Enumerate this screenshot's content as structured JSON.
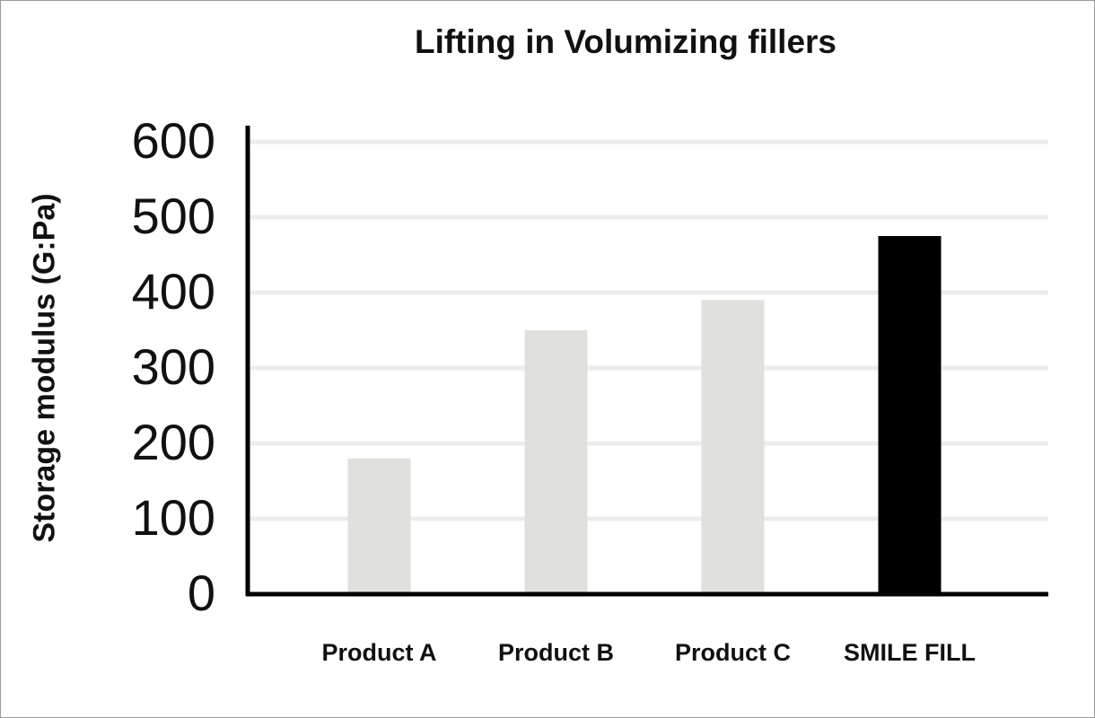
{
  "chart_data": {
    "type": "bar",
    "title": "Lifting in Volumizing fillers",
    "xlabel": "",
    "ylabel": "Storage modulus (G:Pa)",
    "categories": [
      "Product A",
      "Product B",
      "Product C",
      "SMILE FILL"
    ],
    "values": [
      180,
      350,
      390,
      475
    ],
    "ylim": [
      0,
      600
    ],
    "yticks": [
      0,
      100,
      200,
      300,
      400,
      500,
      600
    ],
    "grid": true,
    "legend": "none",
    "colors": {
      "bar_default": "#e0e0dc",
      "bar_highlight": "#000000",
      "axis": "#000000",
      "grid": "#ececec",
      "text": "#111111"
    },
    "highlight_category": "SMILE FILL"
  }
}
